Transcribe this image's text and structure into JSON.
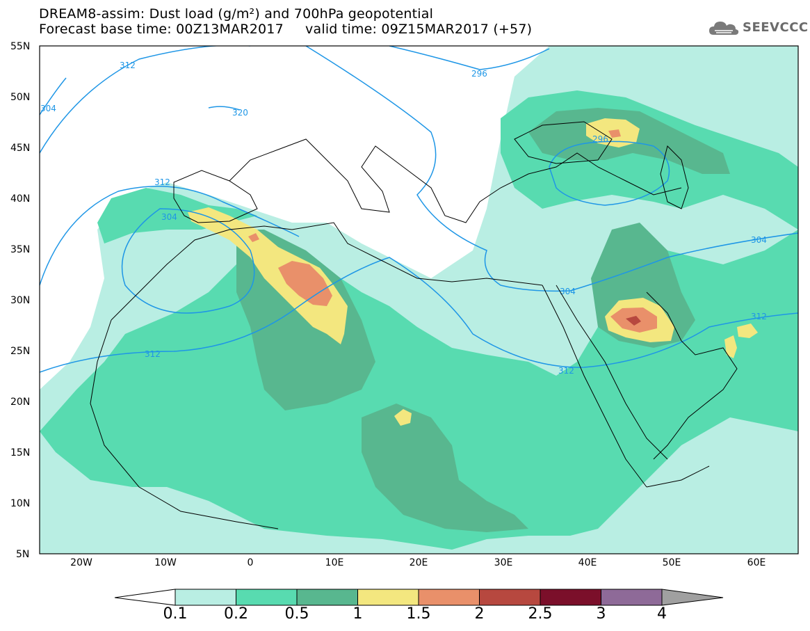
{
  "title": {
    "line1": "DREAM8-assim: Dust load (g/m²) and 700hPa geopotential",
    "line2": "Forecast base time: 00Z13MAR2017     valid time: 09Z15MAR2017 (+57)"
  },
  "logo": {
    "text": "SEEVCCC",
    "icon": "cloud-icon"
  },
  "map": {
    "lat_labels": [
      "55N",
      "50N",
      "45N",
      "40N",
      "35N",
      "30N",
      "25N",
      "20N",
      "15N",
      "10N",
      "5N"
    ],
    "lon_labels": [
      "20W",
      "10W",
      "0",
      "10E",
      "20E",
      "30E",
      "40E",
      "50E",
      "60E"
    ],
    "contour_labels": [
      "312",
      "296",
      "320",
      "304",
      "312",
      "304",
      "312",
      "296",
      "304",
      "312",
      "312",
      "304"
    ],
    "colors": {
      "0.1": "#b9eee3",
      "0.2": "#58dbb0",
      "0.5": "#58b78f",
      "1": "#f3e77f",
      "1.5": "#e9906a",
      "2": "#c8645a",
      "2.5": "#b7483f",
      "3": "#7b0f2a",
      "4": "#8e6a98",
      "contour": "#1e96e6"
    }
  },
  "colorbar": {
    "labels": [
      "0.1",
      "0.2",
      "0.5",
      "1",
      "1.5",
      "2",
      "2.5",
      "3",
      "4"
    ],
    "colors": [
      "#b9eee3",
      "#58dbb0",
      "#58b78f",
      "#f3e77f",
      "#e9906a",
      "#b7483f",
      "#7b0f2a",
      "#8e6a98"
    ],
    "under_color": "#ffffff",
    "over_color": "#a0a0a0"
  }
}
